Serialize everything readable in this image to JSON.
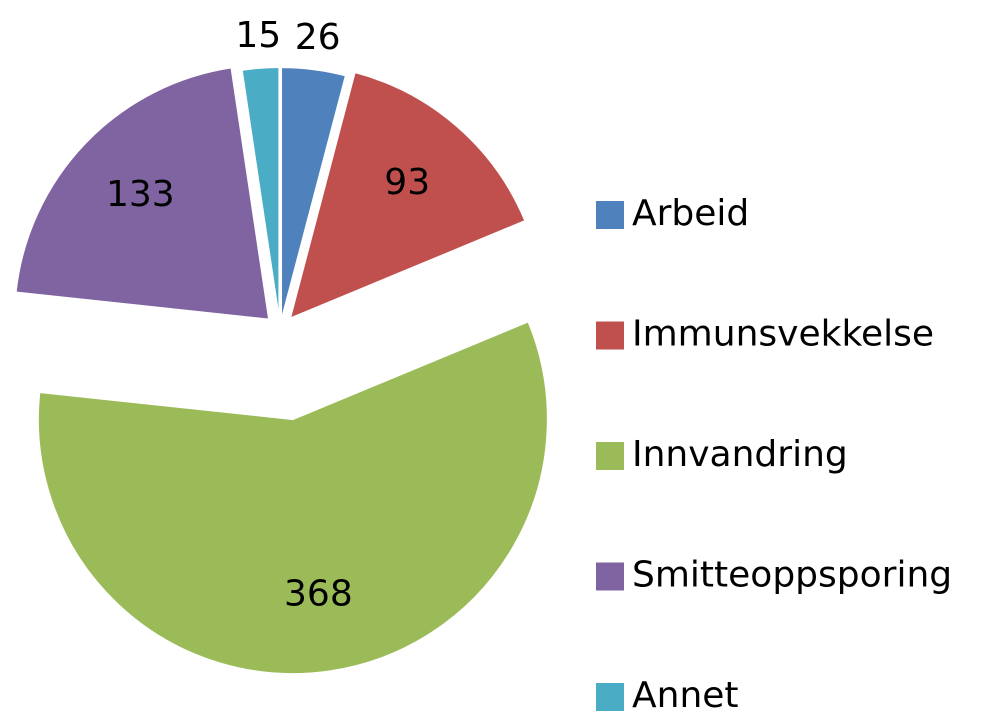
{
  "chart_data": {
    "type": "pie",
    "categories": [
      "Arbeid",
      "Immunsvekkelse",
      "Innvandring",
      "Smitteoppsporing",
      "Annet"
    ],
    "values": [
      26,
      93,
      368,
      133,
      15
    ],
    "colors": [
      "#4f81bd",
      "#c0504d",
      "#9bbb59",
      "#8064a2",
      "#4bacc6"
    ],
    "legend": "right"
  }
}
